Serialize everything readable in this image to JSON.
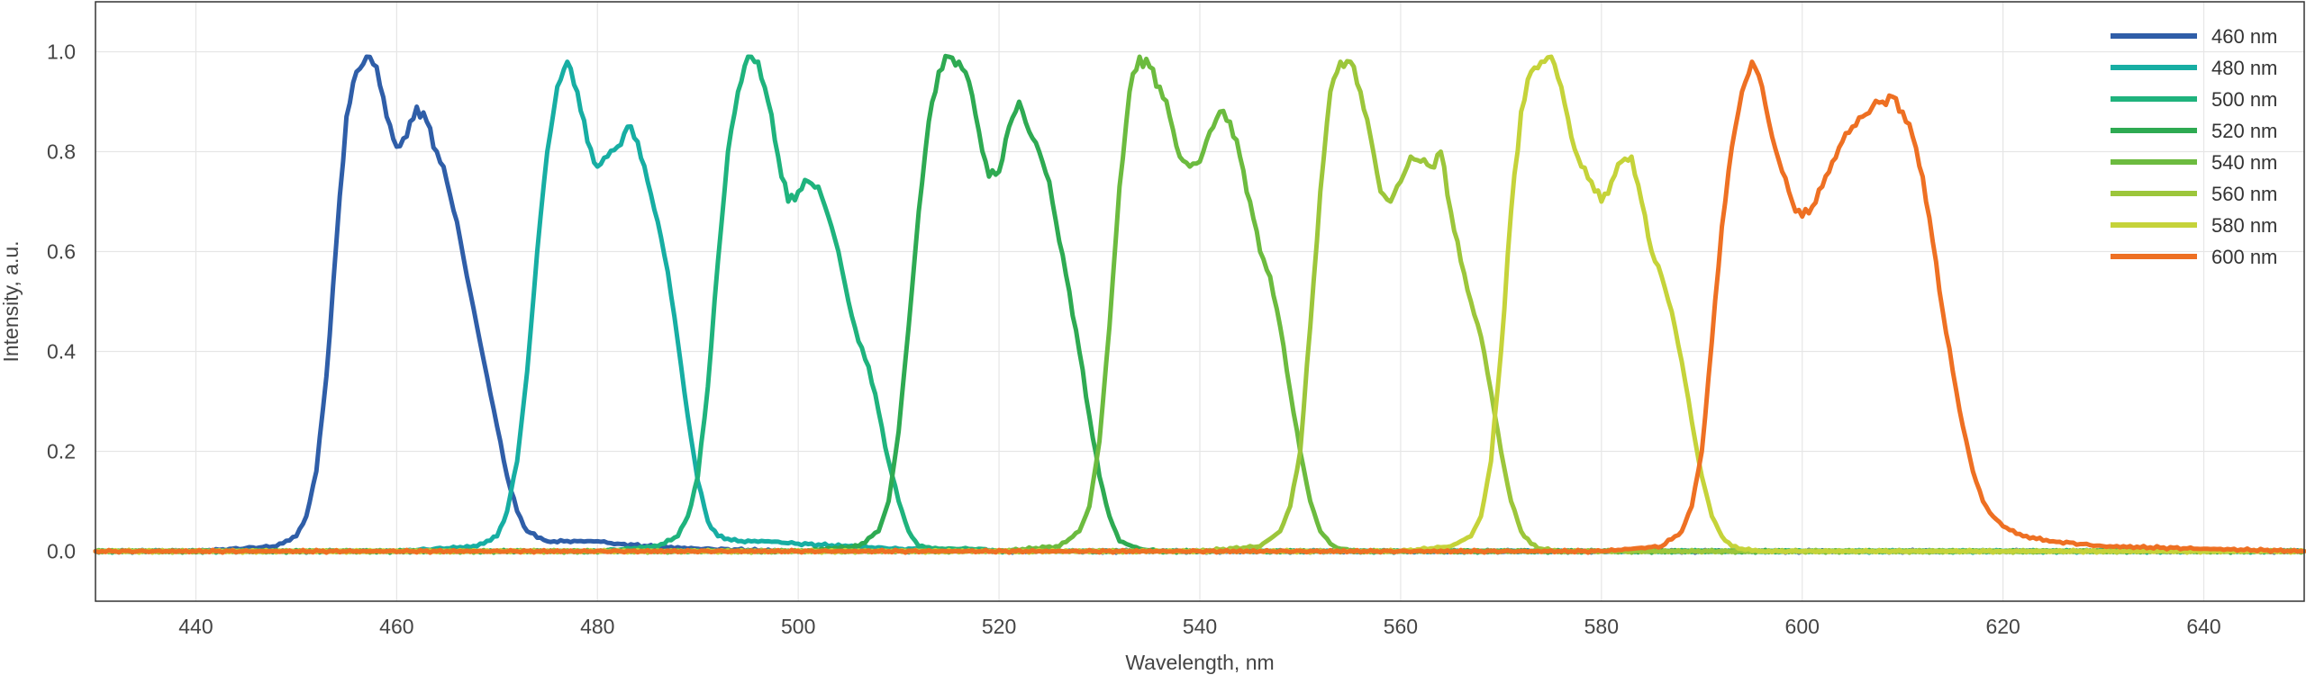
{
  "chart_data": {
    "type": "line",
    "title": "",
    "xlabel": "Wavelength, nm",
    "ylabel": "Intensity, a.u.",
    "xlim": [
      430,
      650
    ],
    "ylim": [
      -0.1,
      1.1
    ],
    "xticks": [
      440,
      460,
      480,
      500,
      520,
      540,
      560,
      580,
      600,
      620,
      640
    ],
    "yticks": [
      0.0,
      0.2,
      0.4,
      0.6,
      0.8,
      1.0
    ],
    "xtick_labels": [
      "440",
      "460",
      "480",
      "500",
      "520",
      "540",
      "560",
      "580",
      "600",
      "620",
      "640"
    ],
    "ytick_labels": [
      "0.0",
      "0.2",
      "0.4",
      "0.6",
      "0.8",
      "1.0"
    ],
    "grid": true,
    "legend_position": "top-right",
    "series": [
      {
        "name": "460 nm",
        "color": "#2f5ea8",
        "x": [
          430,
          440,
          448,
          450,
          451,
          452,
          453,
          454,
          455,
          456,
          457,
          458,
          459,
          460,
          461,
          462,
          463,
          464,
          465,
          466,
          467,
          468,
          469,
          470,
          471,
          472,
          473,
          475,
          478,
          480,
          482,
          485,
          490,
          500,
          520,
          540,
          560,
          580,
          600,
          620,
          650
        ],
        "y": [
          0.0,
          0.0,
          0.01,
          0.03,
          0.07,
          0.16,
          0.35,
          0.62,
          0.87,
          0.96,
          0.99,
          0.97,
          0.87,
          0.81,
          0.83,
          0.89,
          0.86,
          0.8,
          0.74,
          0.66,
          0.55,
          0.45,
          0.35,
          0.25,
          0.15,
          0.08,
          0.04,
          0.02,
          0.02,
          0.02,
          0.015,
          0.01,
          0.005,
          0.0,
          0.0,
          0.0,
          0.0,
          0.0,
          0.0,
          0.0,
          0.0
        ]
      },
      {
        "name": "480 nm",
        "color": "#17aea3",
        "x": [
          430,
          460,
          468,
          470,
          471,
          472,
          473,
          474,
          475,
          476,
          477,
          478,
          479,
          480,
          481,
          482,
          483,
          484,
          485,
          486,
          487,
          488,
          489,
          490,
          491,
          492,
          494,
          497,
          500,
          505,
          510,
          520,
          540,
          560,
          580,
          600,
          620,
          650
        ],
        "y": [
          0.0,
          0.0,
          0.01,
          0.03,
          0.08,
          0.18,
          0.36,
          0.6,
          0.8,
          0.93,
          0.98,
          0.92,
          0.82,
          0.77,
          0.79,
          0.81,
          0.85,
          0.82,
          0.74,
          0.66,
          0.56,
          0.42,
          0.27,
          0.14,
          0.06,
          0.03,
          0.02,
          0.02,
          0.015,
          0.01,
          0.005,
          0.0,
          0.0,
          0.0,
          0.0,
          0.0,
          0.0,
          0.0
        ]
      },
      {
        "name": "500 nm",
        "color": "#1fb37d",
        "x": [
          430,
          480,
          486,
          488,
          489,
          490,
          491,
          492,
          493,
          494,
          495,
          496,
          497,
          498,
          499,
          500,
          501,
          502,
          503,
          504,
          505,
          506,
          507,
          508,
          509,
          510,
          511,
          512,
          514,
          518,
          520,
          530,
          540,
          560,
          580,
          600,
          620,
          650
        ],
        "y": [
          0.0,
          0.0,
          0.01,
          0.03,
          0.07,
          0.15,
          0.33,
          0.58,
          0.8,
          0.92,
          0.99,
          0.98,
          0.9,
          0.79,
          0.7,
          0.72,
          0.74,
          0.73,
          0.67,
          0.6,
          0.5,
          0.42,
          0.37,
          0.28,
          0.18,
          0.1,
          0.04,
          0.01,
          0.005,
          0.005,
          0.0,
          0.0,
          0.0,
          0.0,
          0.0,
          0.0,
          0.0,
          0.0
        ]
      },
      {
        "name": "520 nm",
        "color": "#2eaa52",
        "x": [
          430,
          500,
          506,
          508,
          509,
          510,
          511,
          512,
          513,
          514,
          515,
          516,
          517,
          518,
          519,
          520,
          521,
          522,
          523,
          524,
          525,
          526,
          527,
          528,
          529,
          530,
          531,
          532,
          534,
          536,
          540,
          560,
          580,
          600,
          620,
          650
        ],
        "y": [
          0.0,
          0.0,
          0.01,
          0.04,
          0.1,
          0.24,
          0.45,
          0.68,
          0.86,
          0.96,
          0.99,
          0.98,
          0.94,
          0.84,
          0.75,
          0.76,
          0.85,
          0.9,
          0.84,
          0.8,
          0.74,
          0.62,
          0.52,
          0.4,
          0.27,
          0.15,
          0.07,
          0.02,
          0.005,
          0.0,
          0.0,
          0.0,
          0.0,
          0.0,
          0.0,
          0.0
        ]
      },
      {
        "name": "540 nm",
        "color": "#6cbb3f",
        "x": [
          430,
          520,
          526,
          528,
          529,
          530,
          531,
          532,
          533,
          534,
          535,
          536,
          537,
          538,
          539,
          540,
          541,
          542,
          543,
          544,
          545,
          546,
          547,
          548,
          549,
          550,
          551,
          552,
          553,
          554,
          556,
          560,
          580,
          600,
          620,
          650
        ],
        "y": [
          0.0,
          0.0,
          0.01,
          0.04,
          0.09,
          0.22,
          0.45,
          0.73,
          0.92,
          0.99,
          0.97,
          0.93,
          0.87,
          0.79,
          0.77,
          0.78,
          0.84,
          0.88,
          0.86,
          0.79,
          0.7,
          0.6,
          0.55,
          0.45,
          0.32,
          0.2,
          0.1,
          0.04,
          0.015,
          0.005,
          0.0,
          0.0,
          0.0,
          0.0,
          0.0,
          0.0
        ]
      },
      {
        "name": "560 nm",
        "color": "#9cc63b",
        "x": [
          430,
          540,
          546,
          548,
          549,
          550,
          551,
          552,
          553,
          554,
          555,
          556,
          557,
          558,
          559,
          560,
          561,
          562,
          563,
          564,
          565,
          566,
          567,
          568,
          569,
          570,
          571,
          572,
          573,
          574,
          576,
          580,
          600,
          620,
          650
        ],
        "y": [
          0.0,
          0.0,
          0.01,
          0.04,
          0.09,
          0.2,
          0.45,
          0.72,
          0.92,
          0.98,
          0.98,
          0.92,
          0.83,
          0.72,
          0.7,
          0.74,
          0.79,
          0.78,
          0.77,
          0.8,
          0.68,
          0.58,
          0.5,
          0.43,
          0.32,
          0.2,
          0.1,
          0.04,
          0.015,
          0.005,
          0.0,
          0.0,
          0.0,
          0.0,
          0.0
        ]
      },
      {
        "name": "580 nm",
        "color": "#c5d33a",
        "x": [
          430,
          560,
          565,
          567,
          568,
          569,
          570,
          571,
          572,
          573,
          574,
          575,
          576,
          577,
          578,
          579,
          580,
          581,
          582,
          583,
          584,
          585,
          586,
          587,
          588,
          589,
          590,
          591,
          592,
          593,
          594,
          596,
          600,
          620,
          650
        ],
        "y": [
          0.0,
          0.0,
          0.01,
          0.03,
          0.07,
          0.18,
          0.4,
          0.68,
          0.88,
          0.96,
          0.98,
          0.99,
          0.93,
          0.83,
          0.77,
          0.74,
          0.7,
          0.74,
          0.78,
          0.79,
          0.7,
          0.6,
          0.55,
          0.48,
          0.38,
          0.26,
          0.15,
          0.07,
          0.03,
          0.01,
          0.005,
          0.0,
          0.0,
          0.0,
          0.0
        ]
      },
      {
        "name": "600 nm",
        "color": "#ee7023",
        "x": [
          430,
          580,
          586,
          588,
          589,
          590,
          591,
          592,
          593,
          594,
          595,
          596,
          597,
          598,
          599,
          600,
          601,
          602,
          603,
          604,
          605,
          606,
          607,
          608,
          609,
          610,
          611,
          612,
          613,
          614,
          615,
          616,
          617,
          618,
          619,
          620,
          622,
          625,
          630,
          640,
          650
        ],
        "y": [
          0.0,
          0.0,
          0.01,
          0.04,
          0.09,
          0.2,
          0.42,
          0.65,
          0.81,
          0.92,
          0.98,
          0.93,
          0.83,
          0.76,
          0.7,
          0.67,
          0.69,
          0.73,
          0.78,
          0.82,
          0.85,
          0.87,
          0.89,
          0.9,
          0.91,
          0.88,
          0.83,
          0.75,
          0.62,
          0.48,
          0.36,
          0.25,
          0.16,
          0.1,
          0.07,
          0.05,
          0.03,
          0.02,
          0.01,
          0.005,
          0.0
        ]
      }
    ]
  }
}
